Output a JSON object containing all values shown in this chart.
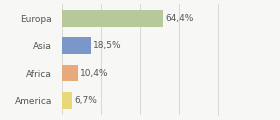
{
  "categories": [
    "Europa",
    "Asia",
    "Africa",
    "America"
  ],
  "values": [
    64.4,
    18.5,
    10.4,
    6.7
  ],
  "labels": [
    "64,4%",
    "18,5%",
    "10,4%",
    "6,7%"
  ],
  "bar_colors": [
    "#b5c99a",
    "#7b96c8",
    "#e8aa7a",
    "#e8d878"
  ],
  "background_color": "#f7f7f5",
  "xlim": [
    0,
    100
  ],
  "bar_height": 0.62,
  "label_fontsize": 6.5,
  "tick_fontsize": 6.5
}
